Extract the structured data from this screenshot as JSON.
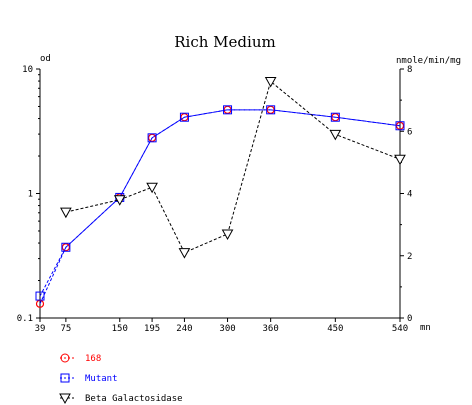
{
  "chart_data": {
    "type": "line",
    "title": "Rich Medium",
    "x": [
      39,
      75,
      150,
      195,
      240,
      300,
      360,
      450,
      540
    ],
    "x_ticks": [
      "39",
      "75",
      "150",
      "195",
      "240",
      "300",
      "360",
      "450",
      "540"
    ],
    "x_unit": "mn",
    "xlim": [
      39,
      540
    ],
    "y_left": {
      "unit": "od",
      "scale": "log",
      "range": [
        0.1,
        10
      ],
      "ticks": [
        "0.1",
        "1",
        "10"
      ]
    },
    "y_right": {
      "unit": "nmole/min/mg",
      "scale": "linear",
      "range": [
        0,
        8
      ],
      "ticks": [
        "0",
        "2",
        "4",
        "6",
        "8"
      ]
    },
    "grid": false,
    "legend_position": "bottom-left",
    "series": [
      {
        "name": "168",
        "axis": "left",
        "marker": "circle",
        "color": "#ff0000",
        "line_color": "#0000ff",
        "values": [
          0.13,
          0.37,
          0.93,
          2.8,
          4.1,
          4.7,
          4.7,
          4.1,
          3.5
        ]
      },
      {
        "name": "Mutant",
        "axis": "left",
        "marker": "square",
        "color": "#0000ff",
        "line_color": "#0000ff",
        "values": [
          0.15,
          0.37,
          0.93,
          2.8,
          4.1,
          4.7,
          4.7,
          4.1,
          3.5
        ]
      },
      {
        "name": "Beta Galactosidase",
        "axis": "right",
        "marker": "triangle-down",
        "color": "#000000",
        "line_color": "#000000",
        "values": [
          null,
          3.4,
          3.8,
          4.2,
          2.1,
          2.7,
          7.6,
          5.9,
          5.1
        ]
      }
    ]
  }
}
